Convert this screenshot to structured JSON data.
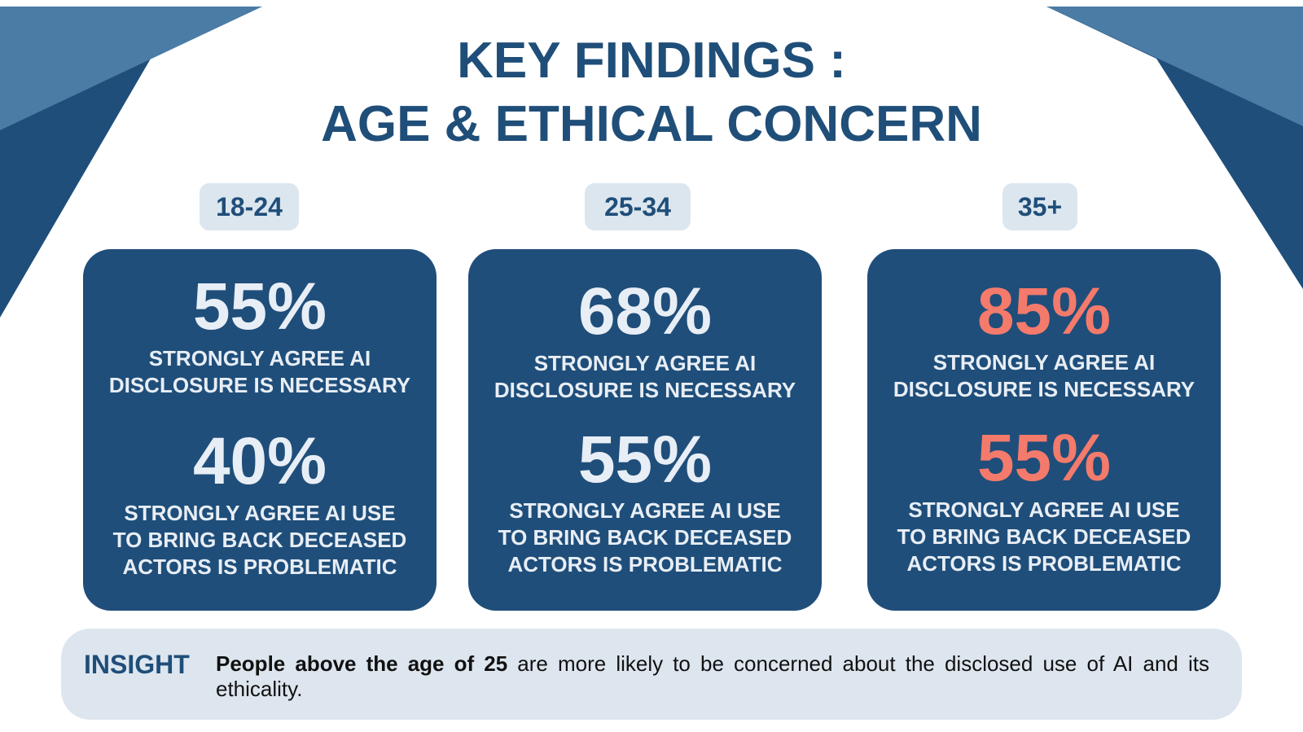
{
  "title": {
    "line1": "KEY FINDINGS :",
    "line2": "AGE & ETHICAL CONCERN"
  },
  "colors": {
    "primary": "#1f4e7a",
    "light": "#dce6ef",
    "highlight": "#f47a6c",
    "deco_light": "#4a7ca6"
  },
  "groups": [
    {
      "age": "18-24",
      "stat1": {
        "value": "55%",
        "label_line1": "STRONGLY AGREE AI",
        "label_line2": "DISCLOSURE IS NECESSARY"
      },
      "stat2": {
        "value": "40%",
        "label_line1": "STRONGLY AGREE AI USE",
        "label_line2": "TO BRING BACK DECEASED",
        "label_line3": "ACTORS IS PROBLEMATIC"
      }
    },
    {
      "age": "25-34",
      "stat1": {
        "value": "68%",
        "label_line1": "STRONGLY AGREE AI",
        "label_line2": "DISCLOSURE IS NECESSARY"
      },
      "stat2": {
        "value": "55%",
        "label_line1": "STRONGLY AGREE AI USE",
        "label_line2": "TO BRING BACK DECEASED",
        "label_line3": "ACTORS IS PROBLEMATIC"
      }
    },
    {
      "age": "35+",
      "stat1": {
        "value": "85%",
        "label_line1": "STRONGLY AGREE AI",
        "label_line2": "DISCLOSURE IS NECESSARY"
      },
      "stat2": {
        "value": "55%",
        "label_line1": "STRONGLY AGREE AI USE",
        "label_line2": "TO BRING BACK DECEASED",
        "label_line3": "ACTORS IS PROBLEMATIC"
      }
    }
  ],
  "insight": {
    "label": "INSIGHT",
    "bold": "People above the age of 25",
    "text": "are more likely to be concerned about the disclosed use of AI and its ethicality."
  }
}
